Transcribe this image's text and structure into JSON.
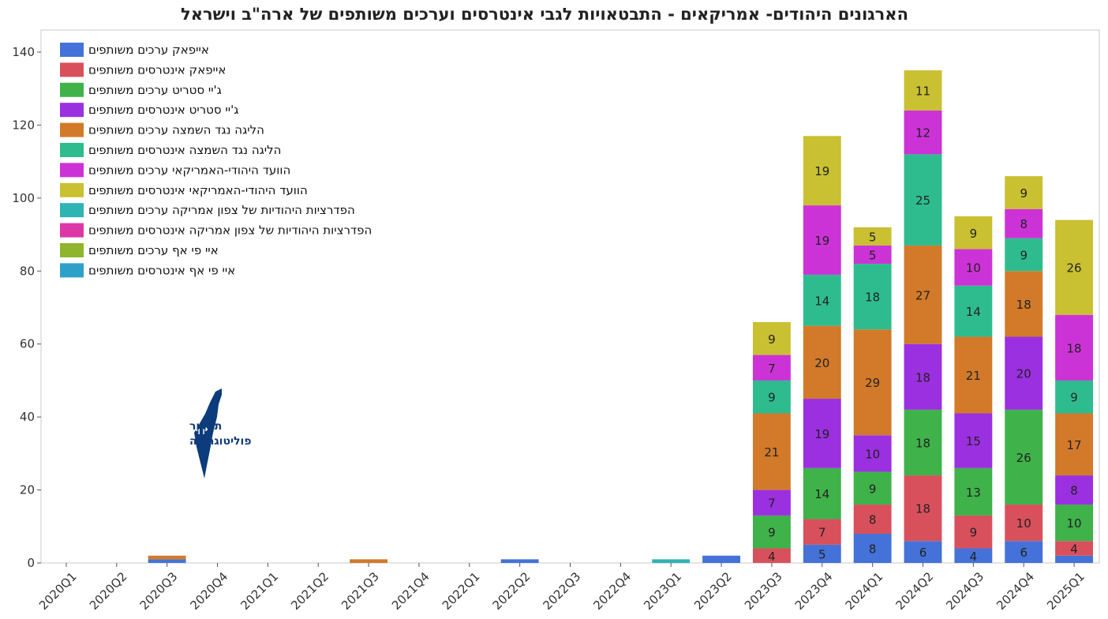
{
  "chart_data": {
    "type": "bar",
    "stacked": true,
    "title": "הארגונים היהודים- אמריקאים - התבטאויות לגבי אינטרסים וערכים משותפים של ארה\"ב וישראל",
    "xlabel": "",
    "ylabel": "",
    "ylim": [
      0,
      140
    ],
    "yticks": [
      0,
      20,
      40,
      60,
      80,
      100,
      120,
      140
    ],
    "grid": false,
    "legend_position": "top-left",
    "categories": [
      "2020Q1",
      "2020Q2",
      "2020Q3",
      "2020Q4",
      "2021Q1",
      "2021Q2",
      "2021Q3",
      "2021Q4",
      "2022Q1",
      "2022Q2",
      "2022Q3",
      "2022Q4",
      "2023Q1",
      "2023Q2",
      "2023Q3",
      "2023Q4",
      "2024Q1",
      "2024Q2",
      "2024Q3",
      "2024Q4",
      "2025Q1"
    ],
    "series": [
      {
        "name": "אייפאק ערכים משותפים",
        "color": "#4472d8",
        "values": [
          0,
          0,
          1,
          0,
          0,
          0,
          0,
          0,
          0,
          1,
          0,
          0,
          0,
          2,
          0,
          5,
          8,
          6,
          4,
          6,
          2
        ]
      },
      {
        "name": "אייפאק אינטרסים משותפים",
        "color": "#d9505d",
        "values": [
          0,
          0,
          0,
          0,
          0,
          0,
          0,
          0,
          0,
          0,
          0,
          0,
          0,
          0,
          4,
          7,
          8,
          18,
          9,
          10,
          4
        ]
      },
      {
        "name": "ג'יי סטריט ערכים משותפים",
        "color": "#3fb24a",
        "values": [
          0,
          0,
          0,
          0,
          0,
          0,
          0,
          0,
          0,
          0,
          0,
          0,
          0,
          0,
          9,
          14,
          9,
          18,
          13,
          26,
          10
        ]
      },
      {
        "name": "ג'יי סטריט אינטרסים משותפים",
        "color": "#9b30e0",
        "values": [
          0,
          0,
          0,
          0,
          0,
          0,
          0,
          0,
          0,
          0,
          0,
          0,
          0,
          0,
          7,
          19,
          10,
          18,
          15,
          20,
          8
        ]
      },
      {
        "name": "הליגה נגד השמצה ערכים משותפים",
        "color": "#d27a2a",
        "values": [
          0,
          0,
          1,
          0,
          0,
          0,
          1,
          0,
          0,
          0,
          0,
          0,
          0,
          0,
          21,
          20,
          29,
          27,
          21,
          18,
          17
        ]
      },
      {
        "name": "הליגה נגד השמצה אינטרסים משותפים",
        "color": "#2ebc8e",
        "values": [
          0,
          0,
          0,
          0,
          0,
          0,
          0,
          0,
          0,
          0,
          0,
          0,
          0,
          0,
          9,
          14,
          18,
          25,
          14,
          9,
          9
        ]
      },
      {
        "name": "הוועד היהודי-האמריקאי ערכים משותפים",
        "color": "#cc33d6",
        "values": [
          0,
          0,
          0,
          0,
          0,
          0,
          0,
          0,
          0,
          0,
          0,
          0,
          0,
          0,
          7,
          19,
          5,
          12,
          10,
          8,
          18
        ]
      },
      {
        "name": "הוועד היהודי-האמריקאי אינטרסים משותפים",
        "color": "#c9c032",
        "values": [
          0,
          0,
          0,
          0,
          0,
          0,
          0,
          0,
          0,
          0,
          0,
          0,
          0,
          0,
          9,
          19,
          5,
          11,
          9,
          9,
          26
        ]
      },
      {
        "name": "הפדרציות היהודיות של צפון אמריקה ערכים משותפים",
        "color": "#2fb3b3",
        "values": [
          0,
          0,
          0,
          0,
          0,
          0,
          0,
          0,
          0,
          0,
          0,
          0,
          1,
          0,
          0,
          0,
          0,
          0,
          0,
          0,
          0
        ]
      },
      {
        "name": "הפדרציות היהודיות של צפון אמריקה אינטרסים משותפים",
        "color": "#dd36a6",
        "values": [
          0,
          0,
          0,
          0,
          0,
          0,
          0,
          0,
          0,
          0,
          0,
          0,
          0,
          0,
          0,
          0,
          0,
          0,
          0,
          0,
          0
        ]
      },
      {
        "name": "איי פי אף  ערכים משותפים",
        "color": "#8fb52c",
        "values": [
          0,
          0,
          0,
          0,
          0,
          0,
          0,
          0,
          0,
          0,
          0,
          0,
          0,
          0,
          0,
          0,
          0,
          0,
          0,
          0,
          0
        ]
      },
      {
        "name": "איי פי אף  אינטרסים משותפים",
        "color": "#2ea0c7",
        "values": [
          0,
          0,
          0,
          0,
          0,
          0,
          0,
          0,
          0,
          0,
          0,
          0,
          0,
          0,
          0,
          0,
          0,
          0,
          0,
          0,
          0
        ]
      }
    ]
  },
  "logo": {
    "line1": "תמרור",
    "line2": "פוליטוגרפיה"
  }
}
